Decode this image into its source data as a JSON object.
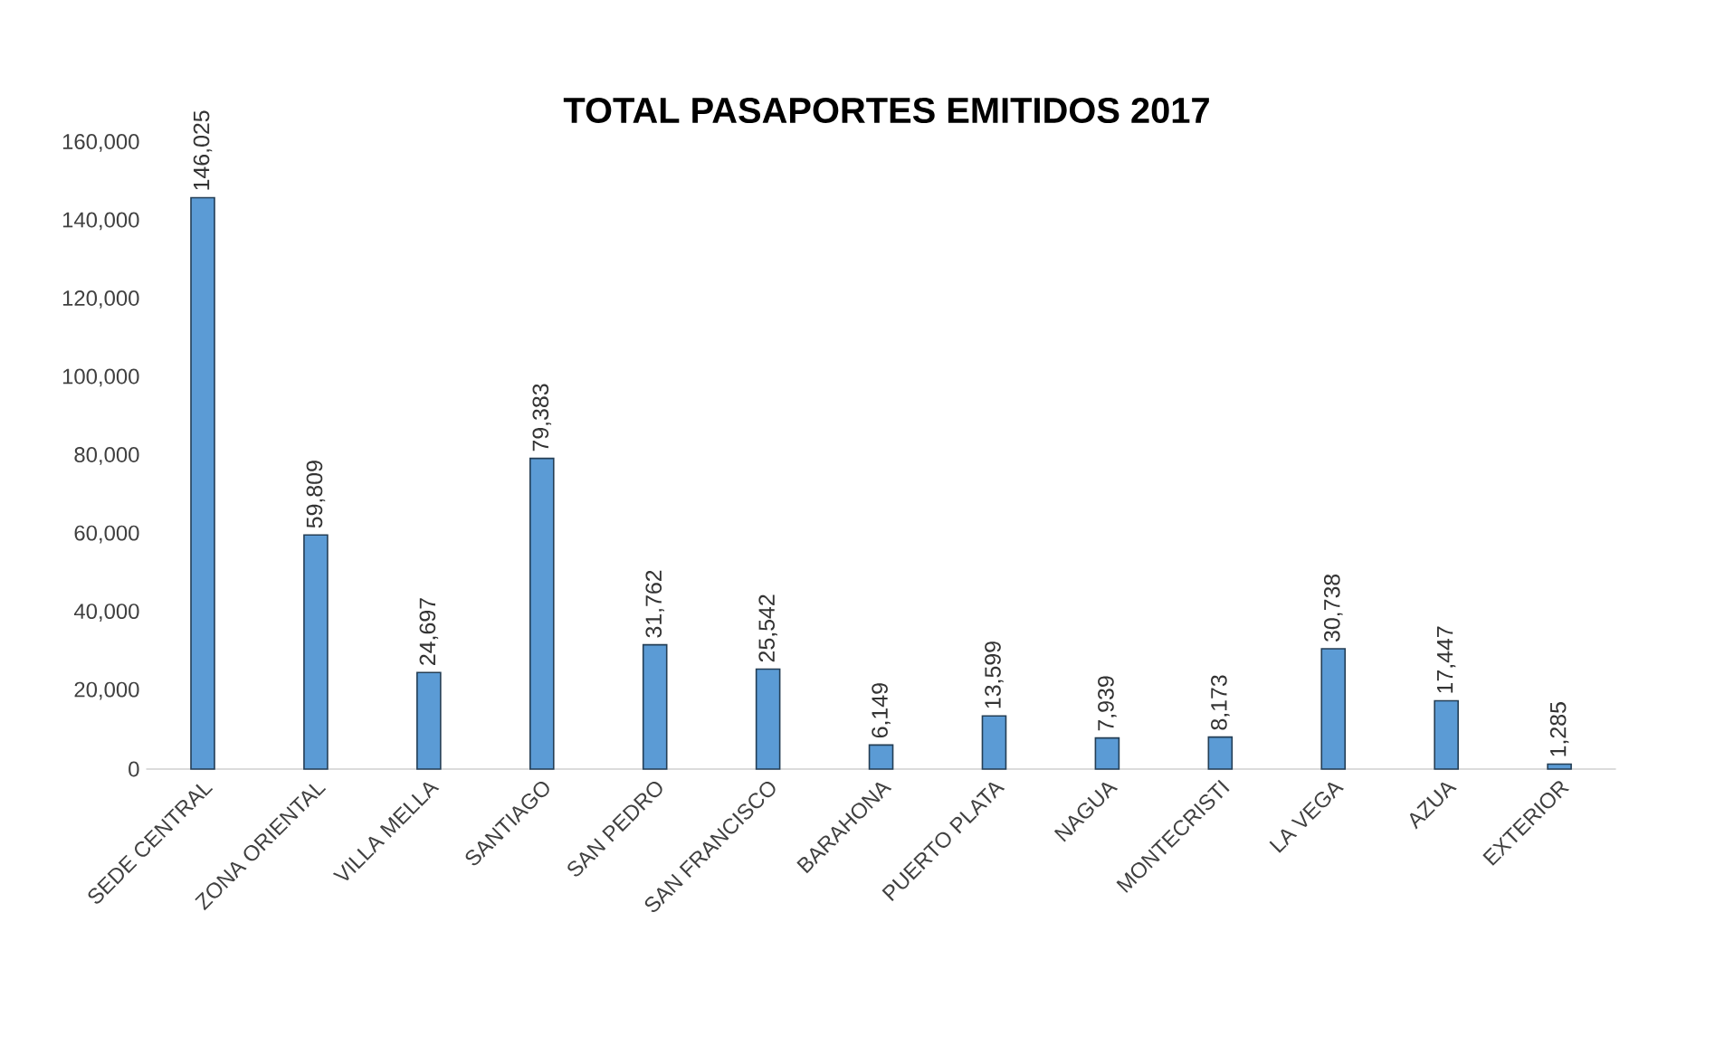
{
  "chart_data": {
    "type": "bar",
    "title": "TOTAL PASAPORTES EMITIDOS 2017",
    "categories": [
      "SEDE CENTRAL",
      "ZONA ORIENTAL",
      "VILLA MELLA",
      "SANTIAGO",
      "SAN PEDRO",
      "SAN FRANCISCO",
      "BARAHONA",
      "PUERTO PLATA",
      "NAGUA",
      "MONTECRISTI",
      "LA VEGA",
      "AZUA",
      "EXTERIOR"
    ],
    "values": [
      146025,
      59809,
      24697,
      79383,
      31762,
      25542,
      6149,
      13599,
      7939,
      8173,
      30738,
      17447,
      1285
    ],
    "value_labels": [
      "146,025",
      "59,809",
      "24,697",
      "79,383",
      "31,762",
      "25,542",
      "6,149",
      "13,599",
      "7,939",
      "8,173",
      "30,738",
      "17,447",
      "1,285"
    ],
    "color": "#5b9bd5",
    "ylim": [
      0,
      160000
    ],
    "yticks": [
      0,
      {
        "value": 20000,
        "label": "20,000"
      },
      {
        "value": 40000,
        "label": "40,000"
      },
      {
        "value": 60000,
        "label": "60,000"
      },
      {
        "value": 80000,
        "label": "80,000"
      },
      {
        "value": 100000,
        "label": "100,000"
      },
      {
        "value": 120000,
        "label": "120,000"
      },
      {
        "value": 140000,
        "label": "140,000"
      },
      {
        "value": 160000,
        "label": "160,000"
      }
    ],
    "grid": false
  }
}
